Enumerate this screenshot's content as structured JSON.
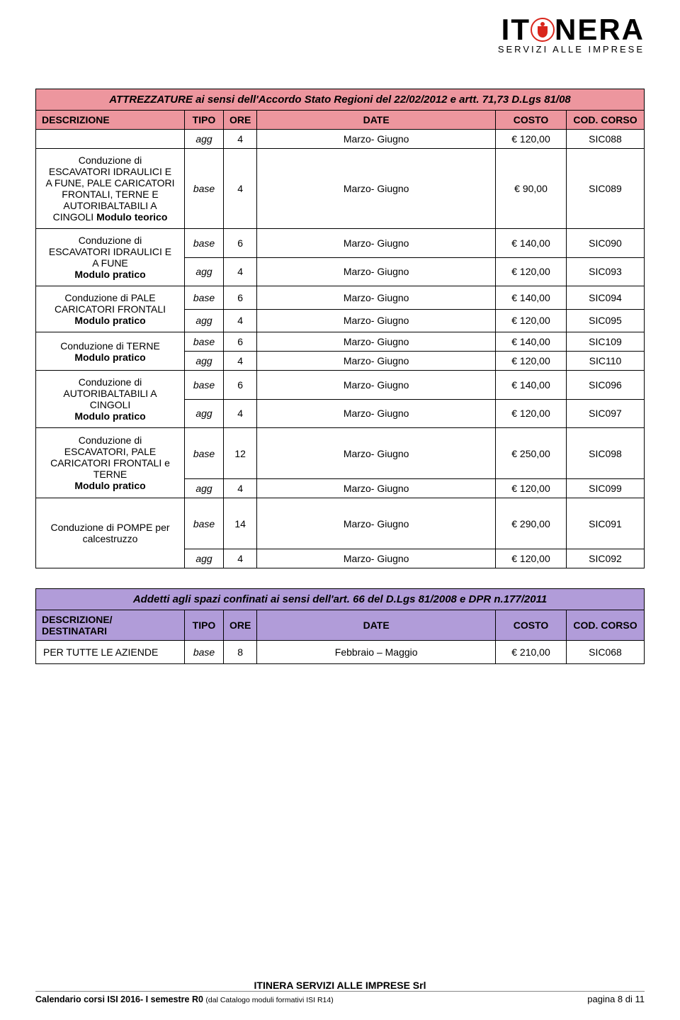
{
  "logo": {
    "t1": "IT",
    "t2": "NERA",
    "sub": "SERVIZI ALLE IMPRESE"
  },
  "table1": {
    "title": "ATTREZZATURE ai sensi dell'Accordo Stato Regioni del 22/02/2012 e artt. 71,73 D.Lgs 81/08",
    "cols": {
      "desc": "DESCRIZIONE",
      "tipo": "TIPO",
      "ore": "ORE",
      "date": "DATE",
      "costo": "COSTO",
      "cod": "COD. CORSO"
    },
    "rows": [
      {
        "desc_html": "",
        "tipo": "agg",
        "ore": "4",
        "date": "Marzo- Giugno",
        "costo": "€ 120,00",
        "cod": "SIC088",
        "rowspan": 1
      },
      {
        "desc_html": "Conduzione di<br>ESCAVATORI IDRAULICI E<br>A FUNE, PALE CARICATORI<br>FRONTALI, TERNE E<br>AUTORIBALTABILI A<br>CINGOLI <b>Modulo teorico</b>",
        "tipo": "base",
        "ore": "4",
        "date": "Marzo- Giugno",
        "costo": "€ 90,00",
        "cod": "SIC089",
        "rowspan": 1
      },
      {
        "desc_html": "Conduzione di<br>ESCAVATORI IDRAULICI E<br>A FUNE<br><b>Modulo pratico</b>",
        "tipo": "base",
        "ore": "6",
        "date": "Marzo- Giugno",
        "costo": "€ 140,00",
        "cod": "SIC090",
        "rowspan": 2
      },
      {
        "tipo": "agg",
        "ore": "4",
        "date": "Marzo- Giugno",
        "costo": "€ 120,00",
        "cod": "SIC093"
      },
      {
        "desc_html": "Conduzione di PALE<br>CARICATORI FRONTALI<br><b>Modulo pratico</b>",
        "tipo": "base",
        "ore": "6",
        "date": "Marzo- Giugno",
        "costo": "€ 140,00",
        "cod": "SIC094",
        "rowspan": 2
      },
      {
        "tipo": "agg",
        "ore": "4",
        "date": "Marzo- Giugno",
        "costo": "€ 120,00",
        "cod": "SIC095"
      },
      {
        "desc_html": "Conduzione di TERNE<br><b>Modulo pratico</b>",
        "tipo": "base",
        "ore": "6",
        "date": "Marzo- Giugno",
        "costo": "€ 140,00",
        "cod": "SIC109",
        "rowspan": 2
      },
      {
        "tipo": "agg",
        "ore": "4",
        "date": "Marzo- Giugno",
        "costo": "€ 120,00",
        "cod": "SIC110"
      },
      {
        "desc_html": "Conduzione di<br>AUTORIBALTABILI A<br>CINGOLI<br><b>Modulo pratico</b>",
        "tipo": "base",
        "ore": "6",
        "date": "Marzo- Giugno",
        "costo": "€ 140,00",
        "cod": "SIC096",
        "rowspan": 2
      },
      {
        "tipo": "agg",
        "ore": "4",
        "date": "Marzo- Giugno",
        "costo": "€ 120,00",
        "cod": "SIC097"
      },
      {
        "desc_html": "Conduzione di<br>ESCAVATORI, PALE<br>CARICATORI FRONTALI e<br>TERNE<br><b>Modulo pratico</b>",
        "tipo": "base",
        "ore": "12",
        "date": "Marzo- Giugno",
        "costo": "€ 250,00",
        "cod": "SIC098",
        "rowspan": 2,
        "tall": true
      },
      {
        "tipo": "agg",
        "ore": "4",
        "date": "Marzo- Giugno",
        "costo": "€ 120,00",
        "cod": "SIC099"
      },
      {
        "desc_html": "Conduzione di POMPE per<br>calcestruzzo",
        "tipo": "base",
        "ore": "14",
        "date": "Marzo- Giugno",
        "costo": "€ 290,00",
        "cod": "SIC091",
        "rowspan": 2,
        "tall": true
      },
      {
        "tipo": "agg",
        "ore": "4",
        "date": "Marzo- Giugno",
        "costo": "€ 120,00",
        "cod": "SIC092"
      }
    ]
  },
  "table2": {
    "title": "Addetti agli spazi confinati ai sensi  dell'art. 66 del D.Lgs 81/2008 e DPR n.177/2011",
    "cols": {
      "desc": "DESCRIZIONE/ DESTINATARI",
      "tipo": "TIPO",
      "ore": "ORE",
      "date": "DATE",
      "costo": "COSTO",
      "cod": "COD. CORSO"
    },
    "row": {
      "desc": "PER TUTTE LE AZIENDE",
      "tipo": "base",
      "ore": "8",
      "date": "Febbraio – Maggio",
      "costo": "€ 210,00",
      "cod": "SIC068"
    }
  },
  "footer": {
    "center": "ITINERA SERVIZI ALLE IMPRESE Srl",
    "left_b": "Calendario corsi ISI 2016- I semestre R0 ",
    "left_sm": "(dal Catalogo moduli formativi ISI R14)",
    "right": "pagina 8 di 11"
  }
}
